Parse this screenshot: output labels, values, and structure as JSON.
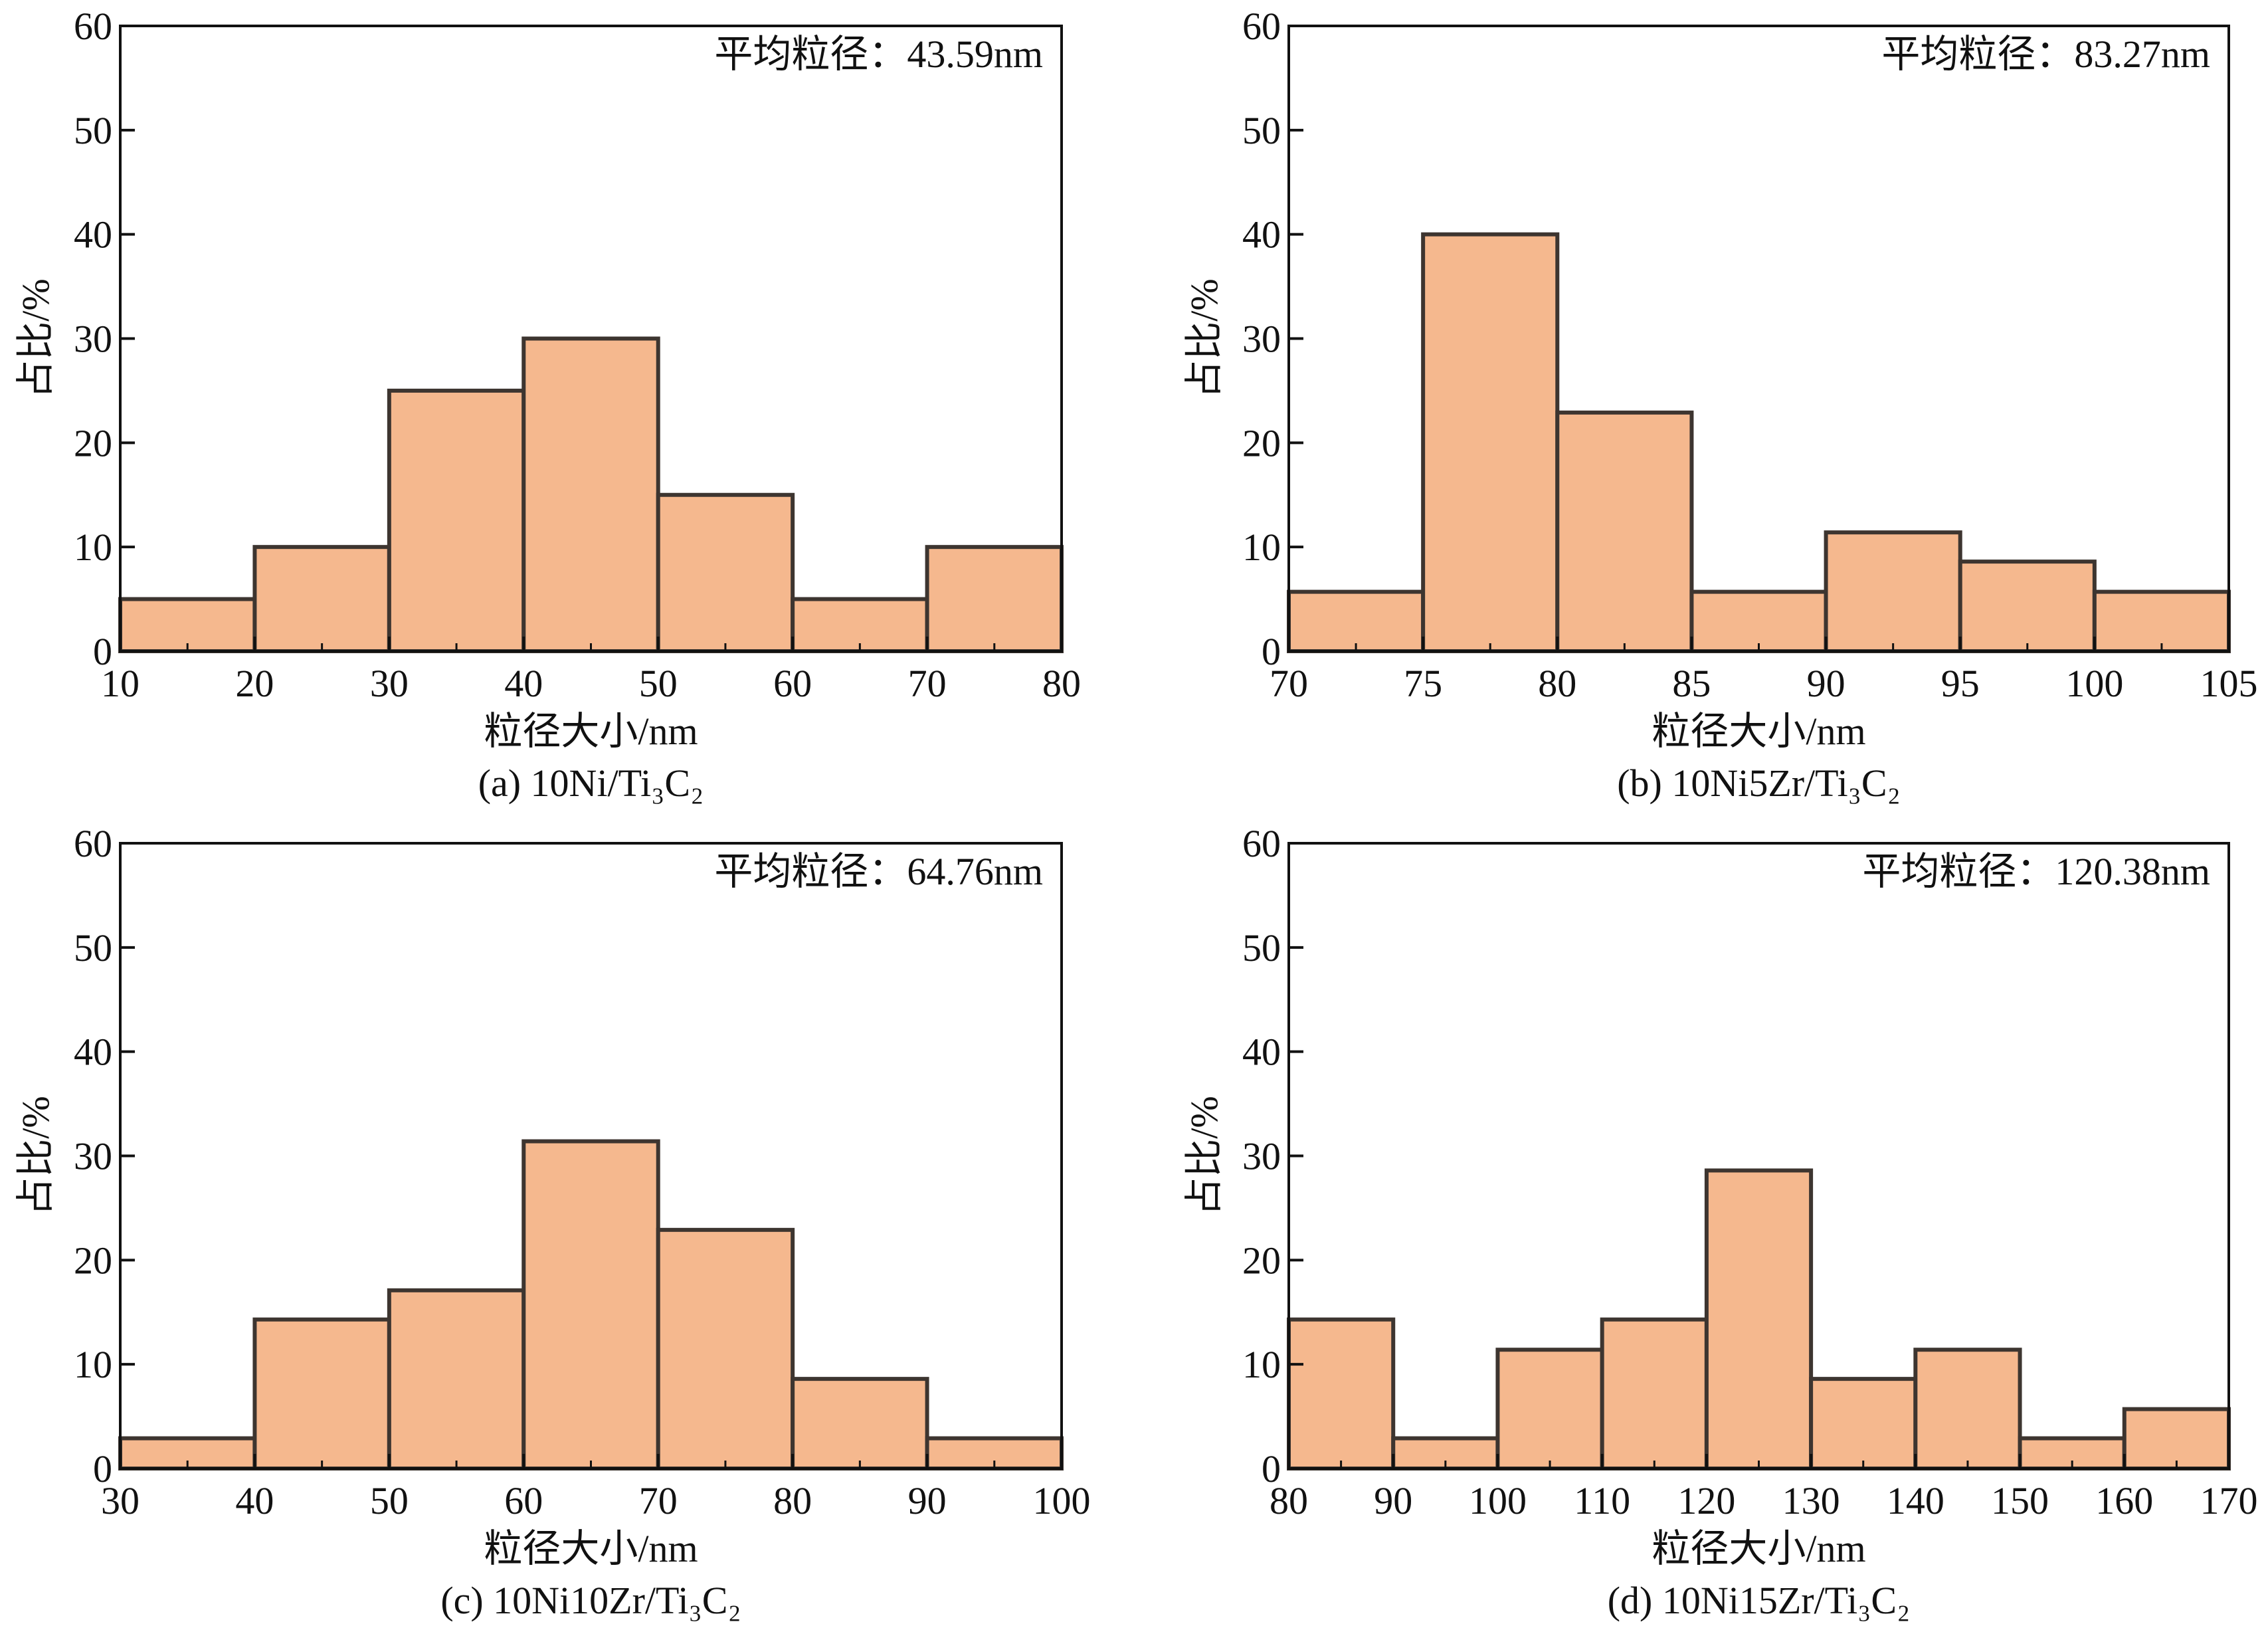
{
  "colors": {
    "bar_fill": "#F5B88E",
    "bar_edge": "#3d3530",
    "axis": "#111111"
  },
  "chart_data": [
    {
      "type": "bar",
      "subtype": "histogram",
      "caption": "(a) 10Ni/Ti₃C₂",
      "annotation": "平均粒径：43.59nm",
      "xlabel": "粒径大小/nm",
      "ylabel": "占比/%",
      "xlim": [
        10,
        80
      ],
      "ylim": [
        0,
        60
      ],
      "xticks": [
        10,
        20,
        30,
        40,
        50,
        60,
        70,
        80
      ],
      "yticks": [
        0,
        10,
        20,
        30,
        40,
        50,
        60
      ],
      "bin_edges": [
        10,
        20,
        30,
        40,
        50,
        60,
        70,
        80
      ],
      "values": [
        5,
        10,
        25,
        30,
        15,
        5,
        10
      ]
    },
    {
      "type": "bar",
      "subtype": "histogram",
      "caption": "(b) 10Ni5Zr/Ti₃C₂",
      "annotation": "平均粒径：83.27nm",
      "xlabel": "粒径大小/nm",
      "ylabel": "占比/%",
      "xlim": [
        70,
        105
      ],
      "ylim": [
        0,
        60
      ],
      "xticks": [
        70,
        75,
        80,
        85,
        90,
        95,
        100,
        105
      ],
      "yticks": [
        0,
        10,
        20,
        30,
        40,
        50,
        60
      ],
      "bin_edges": [
        70,
        75,
        80,
        85,
        90,
        95,
        100,
        105
      ],
      "values": [
        5.7,
        40,
        22.9,
        5.7,
        11.4,
        8.6,
        5.7
      ]
    },
    {
      "type": "bar",
      "subtype": "histogram",
      "caption": "(c) 10Ni10Zr/Ti₃C₂",
      "annotation": "平均粒径：64.76nm",
      "xlabel": "粒径大小/nm",
      "ylabel": "占比/%",
      "xlim": [
        30,
        100
      ],
      "ylim": [
        0,
        60
      ],
      "xticks": [
        30,
        40,
        50,
        60,
        70,
        80,
        90,
        100
      ],
      "yticks": [
        0,
        10,
        20,
        30,
        40,
        50,
        60
      ],
      "bin_edges": [
        30,
        40,
        50,
        60,
        70,
        80,
        90,
        100
      ],
      "values": [
        2.9,
        14.3,
        17.1,
        31.4,
        22.9,
        8.6,
        2.9
      ]
    },
    {
      "type": "bar",
      "subtype": "histogram",
      "caption": "(d) 10Ni15Zr/Ti₃C₂",
      "annotation": "平均粒径：120.38nm",
      "xlabel": "粒径大小/nm",
      "ylabel": "占比/%",
      "xlim": [
        80,
        170
      ],
      "ylim": [
        0,
        60
      ],
      "xticks": [
        80,
        90,
        100,
        110,
        120,
        130,
        140,
        150,
        160,
        170
      ],
      "yticks": [
        0,
        10,
        20,
        30,
        40,
        50,
        60
      ],
      "bin_edges": [
        80,
        90,
        100,
        110,
        120,
        130,
        140,
        150,
        160,
        170
      ],
      "values": [
        14.3,
        2.9,
        11.4,
        14.3,
        28.6,
        8.6,
        11.4,
        2.9,
        5.7
      ]
    }
  ]
}
